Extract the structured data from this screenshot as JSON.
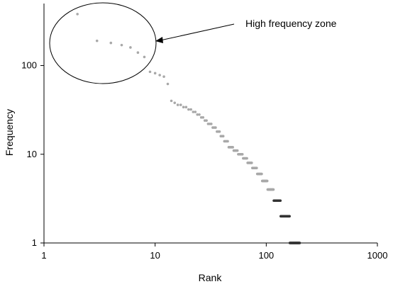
{
  "chart_data": {
    "type": "scatter",
    "title": "",
    "xlabel": "Rank",
    "ylabel": "Frequency",
    "xscale": "log",
    "yscale": "log",
    "xlim": [
      1,
      1000
    ],
    "ylim": [
      1,
      500
    ],
    "grid": false,
    "legend": "none",
    "x_ticks": [
      "1",
      "10",
      "100",
      "1000"
    ],
    "y_ticks": [
      "1",
      "10",
      "100"
    ],
    "annotation": {
      "text": "High frequency zone",
      "shape": "ellipse",
      "arrow": true
    },
    "marker_color": "#a8a8a8",
    "frequency_levels": [
      380,
      190,
      180,
      170,
      160,
      140,
      125,
      85,
      82,
      78,
      75,
      62,
      40,
      38,
      36,
      34,
      32,
      30,
      28,
      26,
      24,
      22,
      20,
      18,
      16,
      14,
      12,
      11,
      10,
      9,
      8,
      7,
      6,
      5,
      4,
      3,
      2,
      1
    ],
    "points": []
  }
}
